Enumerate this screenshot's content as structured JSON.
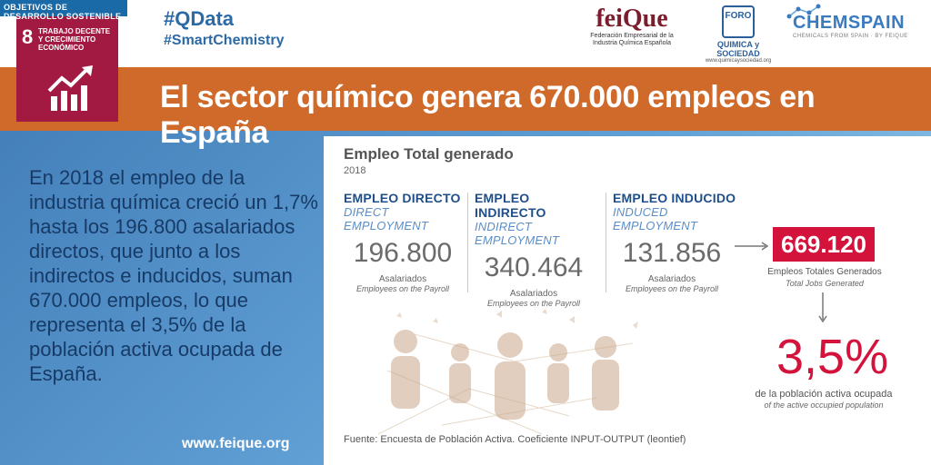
{
  "sdg": {
    "brand": "OBJETIVOS DE DESARROLLO SOSTENIBLE",
    "number": "8",
    "label": "TRABAJO DECENTE Y CRECIMIENTO ECONÓMICO",
    "color": "#a21942"
  },
  "tags": {
    "primary": "#QData",
    "secondary": "#SmartChemistry"
  },
  "logos": {
    "feique": {
      "name": "feiQue",
      "subtitle": "Federación Empresarial de la Industria Química Española"
    },
    "qys": {
      "badge": "FORO",
      "name": "QUIMICA y SOCIEDAD",
      "url": "www.quimicaysociedad.org"
    },
    "chemspain": {
      "name": "CHEMSPAIN",
      "subtitle": "CHEMICALS FROM SPAIN · BY FEIQUE"
    }
  },
  "banner": {
    "title": "El sector químico genera 670.000 empleos en España",
    "color": "#d06a2b"
  },
  "intro": "En 2018 el empleo de la industria química creció un 1,7% hasta los 196.800 asalariados directos, que junto a los indirectos e inducidos, suman 670.000 empleos, lo que representa el 3,5% de la población activa ocupada de España.",
  "website": "www.feique.org",
  "infographic": {
    "title": "Empleo Total generado",
    "year": "2018",
    "columns": [
      {
        "head": "EMPLEO DIRECTO",
        "head_en": "DIRECT EMPLOYMENT",
        "value": "196.800",
        "label": "Asalariados",
        "label_en": "Employees on the Payroll"
      },
      {
        "head": "EMPLEO INDIRECTO",
        "head_en": "INDIRECT EMPLOYMENT",
        "value": "340.464",
        "label": "Asalariados",
        "label_en": "Employees on the Payroll"
      },
      {
        "head": "EMPLEO INDUCIDO",
        "head_en": "INDUCED EMPLOYMENT",
        "value": "131.856",
        "label": "Asalariados",
        "label_en": "Employees on the Payroll"
      }
    ],
    "total": {
      "value": "669.120",
      "label": "Empleos Totales Generados",
      "label_en": "Total Jobs Generated"
    },
    "share": {
      "value": "3,5%",
      "label": "de la población activa ocupada",
      "label_en": "of the active occupied population"
    },
    "source": "Fuente: Encuesta de Población Activa. Coeficiente INPUT-OUTPUT (leontief)",
    "accent": "#d3133c"
  }
}
